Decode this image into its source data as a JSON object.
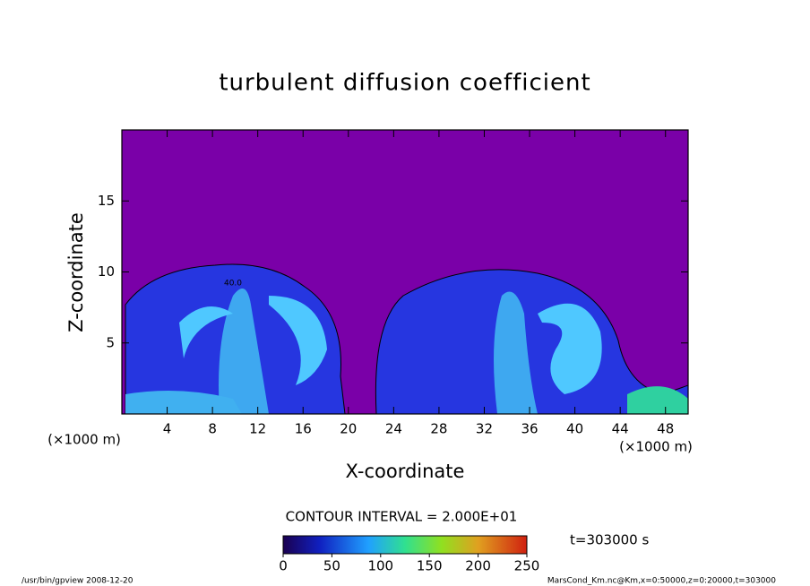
{
  "chart_data": {
    "type": "heatmap",
    "title": "turbulent diffusion coefficient",
    "x_label": "X-coordinate",
    "y_label": "Z-coordinate",
    "x_unit": "(×1000 m)",
    "xlim": [
      0,
      50
    ],
    "ylim": [
      0,
      20
    ],
    "xticks": [
      4,
      8,
      12,
      16,
      20,
      24,
      28,
      32,
      36,
      40,
      44,
      48
    ],
    "yticks": [
      5,
      10,
      15
    ],
    "contour_label": "40.0",
    "contour_interval": "CONTOUR INTERVAL = 2.000E+01",
    "colorbar_lim": [
      0,
      250
    ],
    "colorbar_ticks": [
      0,
      50,
      100,
      150,
      200,
      250
    ],
    "time_label": "t=303000 s",
    "footer_left": "/usr/bin/gpview   2008-12-20",
    "footer_right": "MarsCond_Km.nc@Km,x=0:50000,z=0:20000,t=303000"
  }
}
